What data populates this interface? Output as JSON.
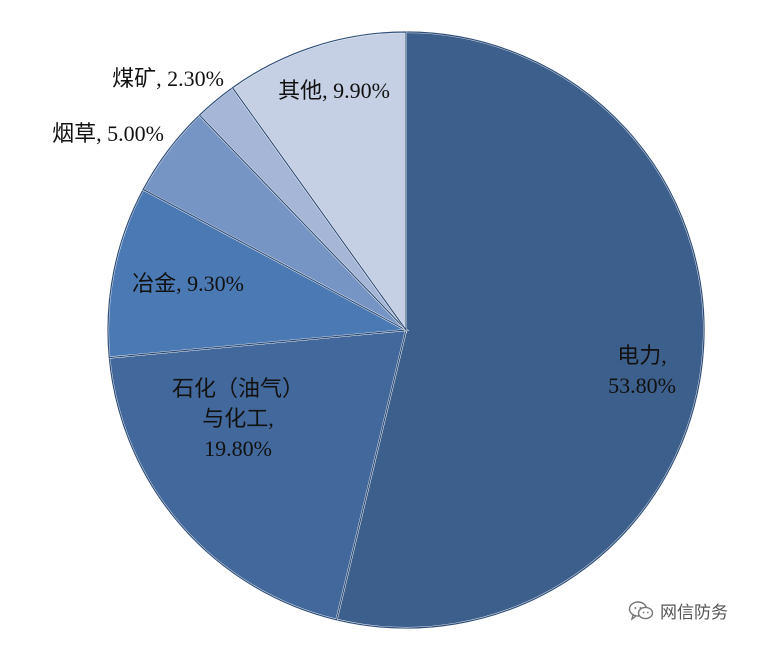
{
  "chart_data": {
    "type": "pie",
    "start_angle_deg": 0,
    "direction": "clockwise",
    "slices": [
      {
        "label": [
          "电力,",
          "53.80%"
        ],
        "value": 53.8,
        "color": "#3c5f8c"
      },
      {
        "label": [
          "石化（油气）",
          "与化工,",
          "19.80%"
        ],
        "value": 19.8,
        "color": "#43699c"
      },
      {
        "label": [
          "冶金, 9.30%"
        ],
        "value": 9.3,
        "color": "#4b79b4"
      },
      {
        "label": [
          "烟草, 5.00%"
        ],
        "value": 5.0,
        "color": "#7695c4"
      },
      {
        "label": [
          "煤矿, 2.30%"
        ],
        "value": 2.3,
        "color": "#a6b6d6"
      },
      {
        "label": [
          "其他, 9.90%"
        ],
        "value": 9.9,
        "color": "#c6d0e5"
      }
    ]
  },
  "watermark": {
    "icon": "wechat-icon",
    "text": "网信防务"
  }
}
